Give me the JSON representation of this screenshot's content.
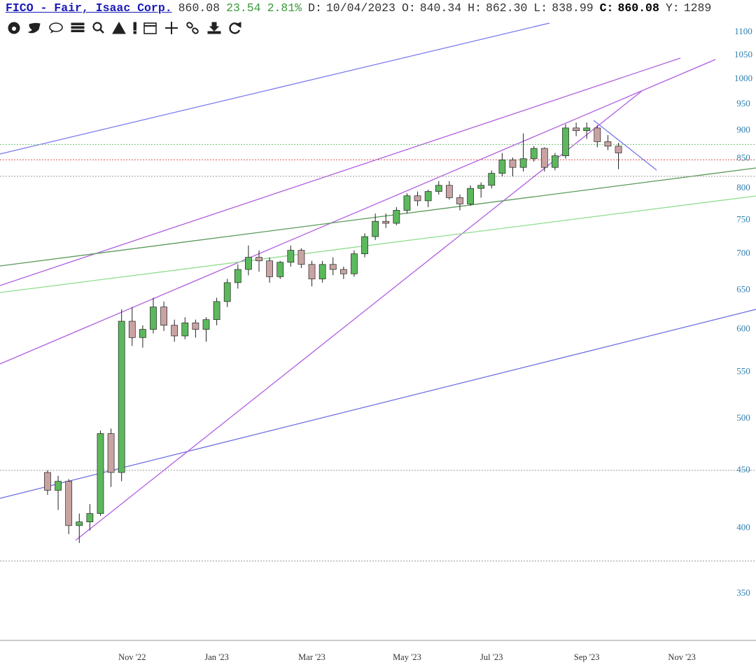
{
  "header": {
    "symbol": "FICO - Fair, Isaac Corp.",
    "last": "860.08",
    "change": "23.54",
    "change_pct": "2.81%",
    "fields": [
      {
        "label": "D:",
        "value": "10/04/2023"
      },
      {
        "label": "O:",
        "value": "840.34"
      },
      {
        "label": "H:",
        "value": "862.30"
      },
      {
        "label": "L:",
        "value": "838.99"
      },
      {
        "label": "C:",
        "value": "860.08"
      },
      {
        "label": "Y:",
        "value": "1289"
      }
    ]
  },
  "chart_data": {
    "type": "candlestick",
    "categories": [
      null,
      null,
      null,
      null,
      null,
      null,
      null,
      null,
      null,
      null,
      null,
      null,
      "Nov '22",
      null,
      null,
      null,
      null,
      null,
      null,
      null,
      "Jan '23",
      null,
      null,
      null,
      null,
      null,
      null,
      null,
      null,
      "Mar '23",
      null,
      null,
      null,
      null,
      null,
      null,
      null,
      null,
      "May '23",
      null,
      null,
      null,
      null,
      null,
      null,
      null,
      "Jul '23",
      null,
      null,
      null,
      null,
      null,
      null,
      null,
      null,
      "Sep '23",
      null,
      null,
      null,
      null,
      null,
      null,
      null,
      null,
      "Nov '23",
      null,
      null,
      null
    ],
    "open": [
      null,
      null,
      null,
      null,
      448,
      432,
      440,
      402,
      405,
      412,
      485,
      448,
      610,
      590,
      600,
      628,
      605,
      592,
      608,
      600,
      612,
      635,
      660,
      678,
      695,
      690,
      668,
      688,
      705,
      685,
      665,
      685,
      678,
      672,
      700,
      725,
      748,
      745,
      765,
      788,
      780,
      795,
      805,
      785,
      775,
      800,
      805,
      825,
      848,
      835,
      850,
      868,
      835,
      855,
      905,
      900,
      905,
      880,
      872,
      null,
      null,
      null,
      null,
      null,
      null,
      null,
      null,
      null
    ],
    "high": [
      null,
      null,
      null,
      null,
      450,
      445,
      442,
      412,
      420,
      488,
      490,
      625,
      628,
      605,
      640,
      635,
      612,
      615,
      612,
      615,
      640,
      665,
      685,
      712,
      705,
      695,
      690,
      712,
      708,
      690,
      690,
      695,
      682,
      705,
      730,
      760,
      760,
      770,
      792,
      795,
      798,
      812,
      812,
      790,
      805,
      810,
      830,
      860,
      852,
      895,
      872,
      870,
      860,
      912,
      915,
      915,
      910,
      892,
      878,
      null,
      null,
      null,
      null,
      null,
      null,
      null,
      null,
      null
    ],
    "low": [
      null,
      null,
      null,
      null,
      428,
      415,
      395,
      388,
      398,
      410,
      435,
      440,
      580,
      578,
      595,
      598,
      585,
      588,
      590,
      585,
      605,
      628,
      652,
      670,
      675,
      660,
      665,
      682,
      680,
      655,
      660,
      670,
      665,
      668,
      695,
      720,
      738,
      742,
      760,
      772,
      770,
      790,
      782,
      765,
      772,
      785,
      800,
      820,
      820,
      828,
      845,
      828,
      830,
      850,
      890,
      885,
      870,
      865,
      832,
      null,
      null,
      null,
      null,
      null,
      null,
      null,
      null,
      null
    ],
    "close": [
      null,
      null,
      null,
      null,
      432,
      440,
      402,
      405,
      412,
      485,
      448,
      610,
      590,
      600,
      628,
      605,
      592,
      608,
      600,
      612,
      635,
      660,
      678,
      695,
      690,
      668,
      688,
      705,
      685,
      665,
      685,
      678,
      672,
      700,
      725,
      748,
      745,
      765,
      788,
      780,
      795,
      805,
      785,
      775,
      800,
      805,
      825,
      848,
      835,
      850,
      868,
      835,
      855,
      905,
      900,
      905,
      880,
      872,
      860.08,
      null,
      null,
      null,
      null,
      null,
      null,
      null,
      null,
      null
    ],
    "up_color": "#5cb85c",
    "down_color": "#c9a3a3",
    "wick_color": "#222",
    "log_scale": true,
    "ylim": [
      318,
      1121
    ],
    "yticks": [
      350,
      400,
      450,
      500,
      550,
      600,
      650,
      700,
      750,
      800,
      850,
      900,
      950,
      1000,
      1050,
      1100
    ],
    "levels": [
      {
        "value": 875,
        "color": "#6cc36c"
      },
      {
        "value": 848,
        "color": "#e05050"
      },
      {
        "value": 820,
        "color": "#999999"
      },
      {
        "value": 450,
        "color": "#999999"
      },
      {
        "value": 374,
        "color": "#999999"
      }
    ]
  }
}
